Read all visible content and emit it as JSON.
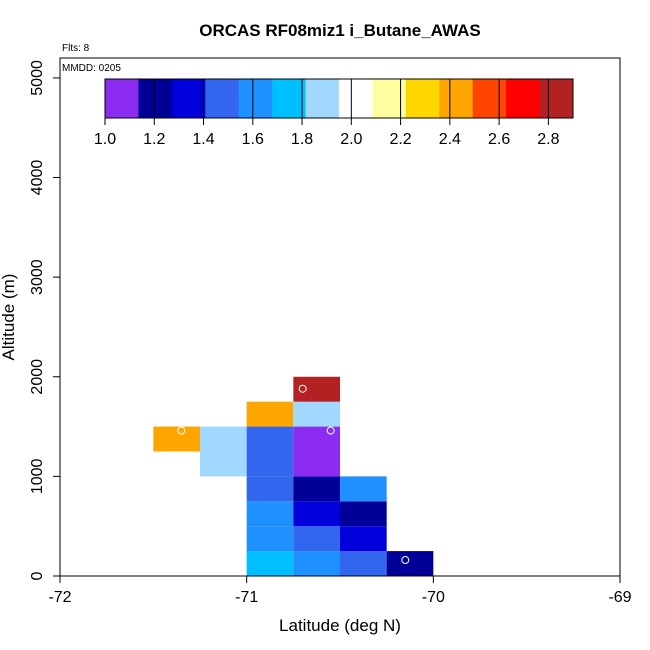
{
  "chart_data": {
    "type": "heatmap",
    "title": "ORCAS RF08miz1 i_Butane_AWAS",
    "flights_label": "Flts: 8",
    "date_label": "MMDD: 0205",
    "xlabel": "Latitude (deg N)",
    "ylabel": "Altitude (m)",
    "xlim": [
      -72,
      -69
    ],
    "ylim": [
      0,
      5200
    ],
    "xticks": [
      -72,
      -71,
      -70,
      -69
    ],
    "xtick_labels": [
      "-72",
      "-71",
      "-70",
      "-69"
    ],
    "yticks": [
      0,
      1000,
      2000,
      3000,
      4000,
      5000
    ],
    "ytick_labels": [
      "0",
      "1000",
      "2000",
      "3000",
      "4000",
      "5000"
    ],
    "cell_width_deg": 0.25,
    "cell_height_m": 250,
    "colorbar": {
      "range": [
        1.0,
        2.9
      ],
      "ticks": [
        1.0,
        1.2,
        1.4,
        1.6,
        1.8,
        2.0,
        2.2,
        2.4,
        2.6,
        2.8
      ],
      "tick_labels": [
        "1.0",
        "1.2",
        "1.4",
        "1.6",
        "1.8",
        "2.0",
        "2.2",
        "2.4",
        "2.6",
        "2.8"
      ],
      "colors": [
        "#8b2cf0",
        "#000099",
        "#0000dd",
        "#3366ee",
        "#1e90ff",
        "#00bfff",
        "#a0d8ff",
        "#ffffff",
        "#ffffa0",
        "#ffd700",
        "#ffa500",
        "#ff4500",
        "#ff0000",
        "#b22222"
      ]
    },
    "cells": [
      {
        "lat": -71.25,
        "alt": 0,
        "value": 2.05
      },
      {
        "lat": -71.0,
        "alt": 0,
        "value": 1.8
      },
      {
        "lat": -70.75,
        "alt": 0,
        "value": 1.6
      },
      {
        "lat": -70.5,
        "alt": 0,
        "value": 1.45
      },
      {
        "lat": -70.25,
        "alt": 0,
        "value": 1.25
      },
      {
        "lat": -71.25,
        "alt": 250,
        "value": 2.05
      },
      {
        "lat": -71.0,
        "alt": 250,
        "value": 1.65
      },
      {
        "lat": -70.75,
        "alt": 250,
        "value": 1.5
      },
      {
        "lat": -70.5,
        "alt": 250,
        "value": 1.3
      },
      {
        "lat": -71.25,
        "alt": 500,
        "value": 1.95
      },
      {
        "lat": -71.0,
        "alt": 500,
        "value": 1.55
      },
      {
        "lat": -70.75,
        "alt": 500,
        "value": 1.4
      },
      {
        "lat": -70.5,
        "alt": 500,
        "value": 1.15
      },
      {
        "lat": -71.25,
        "alt": 750,
        "value": 1.95
      },
      {
        "lat": -71.0,
        "alt": 750,
        "value": 1.45
      },
      {
        "lat": -70.75,
        "alt": 750,
        "value": 1.2
      },
      {
        "lat": -70.5,
        "alt": 750,
        "value": 1.58
      },
      {
        "lat": -71.25,
        "alt": 1000,
        "value": 1.88
      },
      {
        "lat": -71.0,
        "alt": 1000,
        "value": 1.45
      },
      {
        "lat": -70.75,
        "alt": 1000,
        "value": 1.1
      },
      {
        "lat": -71.5,
        "alt": 1250,
        "value": 2.45
      },
      {
        "lat": -71.25,
        "alt": 1250,
        "value": 1.85
      },
      {
        "lat": -71.0,
        "alt": 1250,
        "value": 1.45
      },
      {
        "lat": -70.75,
        "alt": 1250,
        "value": 1.02
      },
      {
        "lat": -71.0,
        "alt": 1500,
        "value": 2.45
      },
      {
        "lat": -70.75,
        "alt": 1500,
        "value": 1.85
      },
      {
        "lat": -70.75,
        "alt": 1750,
        "value": 2.88
      }
    ],
    "markers": [
      {
        "lat": -71.1,
        "alt": 190
      },
      {
        "lat": -70.15,
        "alt": 160
      },
      {
        "lat": -71.35,
        "alt": 1460
      },
      {
        "lat": -70.55,
        "alt": 1460
      },
      {
        "lat": -70.7,
        "alt": 1880
      }
    ]
  }
}
